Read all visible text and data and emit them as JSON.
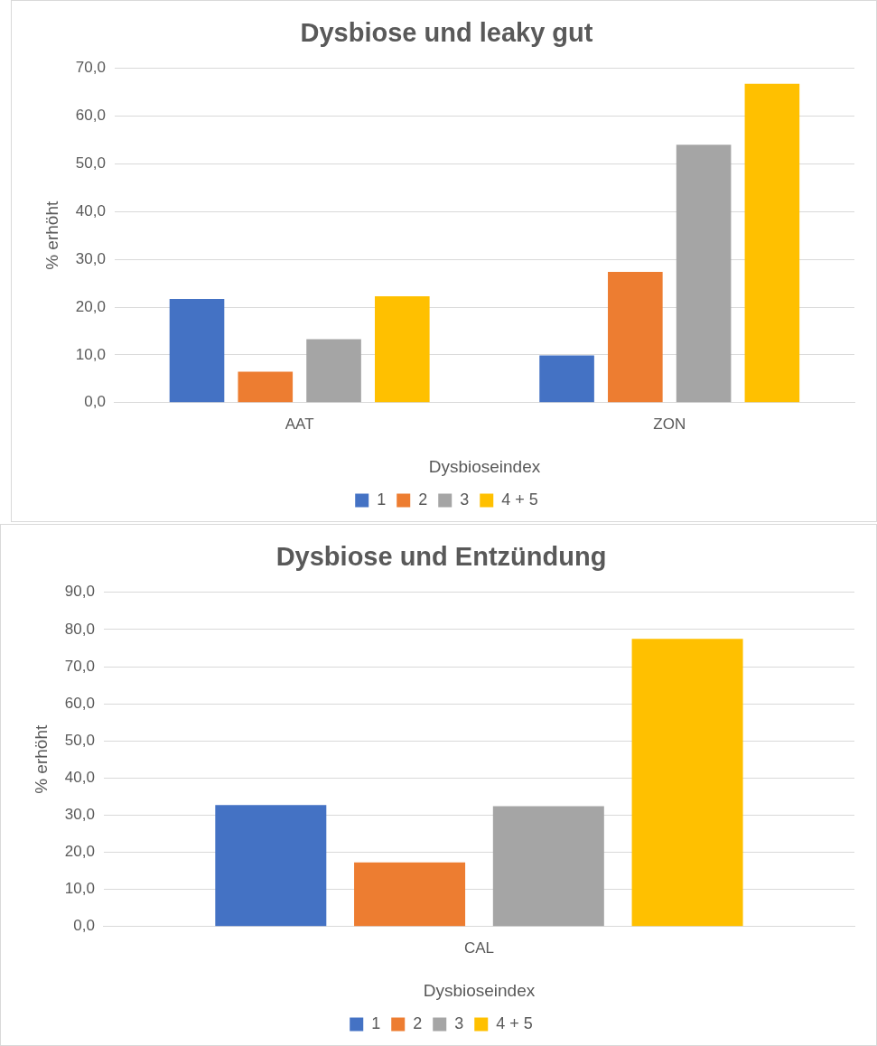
{
  "chart_data": [
    {
      "type": "bar",
      "title": "Dysbiose und leaky gut",
      "xlabel": "Dysbioseindex",
      "ylabel": "% erhöht",
      "categories": [
        "AAT",
        "ZON"
      ],
      "series": [
        {
          "name": "1",
          "color": "#4472c4",
          "values": [
            21.7,
            9.9
          ]
        },
        {
          "name": "2",
          "color": "#ed7d31",
          "values": [
            6.5,
            27.4
          ]
        },
        {
          "name": "3",
          "color": "#a5a5a5",
          "values": [
            13.3,
            54.0
          ]
        },
        {
          "name": "4 + 5",
          "color": "#ffc000",
          "values": [
            22.3,
            66.8
          ]
        }
      ],
      "ylim": [
        0,
        70
      ],
      "yticks": [
        {
          "value": 0,
          "label": "0,0"
        },
        {
          "value": 10,
          "label": "10,0"
        },
        {
          "value": 20,
          "label": "20,0"
        },
        {
          "value": 30,
          "label": "30,0"
        },
        {
          "value": 40,
          "label": "40,0"
        },
        {
          "value": 50,
          "label": "50,0"
        },
        {
          "value": 60,
          "label": "60,0"
        },
        {
          "value": 70,
          "label": "70,0"
        }
      ],
      "grid": "y",
      "legend": "bottom"
    },
    {
      "type": "bar",
      "title": "Dysbiose und Entzündung",
      "xlabel": "Dysbioseindex",
      "ylabel": "% erhöht",
      "categories": [
        "CAL"
      ],
      "series": [
        {
          "name": "1",
          "color": "#4472c4",
          "values": [
            32.7
          ]
        },
        {
          "name": "2",
          "color": "#ed7d31",
          "values": [
            17.3
          ]
        },
        {
          "name": "3",
          "color": "#a5a5a5",
          "values": [
            32.4
          ]
        },
        {
          "name": "4 + 5",
          "color": "#ffc000",
          "values": [
            77.5
          ]
        }
      ],
      "ylim": [
        0,
        90
      ],
      "yticks": [
        {
          "value": 0,
          "label": "0,0"
        },
        {
          "value": 10,
          "label": "10,0"
        },
        {
          "value": 20,
          "label": "20,0"
        },
        {
          "value": 30,
          "label": "30,0"
        },
        {
          "value": 40,
          "label": "40,0"
        },
        {
          "value": 50,
          "label": "50,0"
        },
        {
          "value": 60,
          "label": "60,0"
        },
        {
          "value": 70,
          "label": "70,0"
        },
        {
          "value": 80,
          "label": "80,0"
        },
        {
          "value": 90,
          "label": "90,0"
        }
      ],
      "grid": "y",
      "legend": "bottom"
    }
  ]
}
